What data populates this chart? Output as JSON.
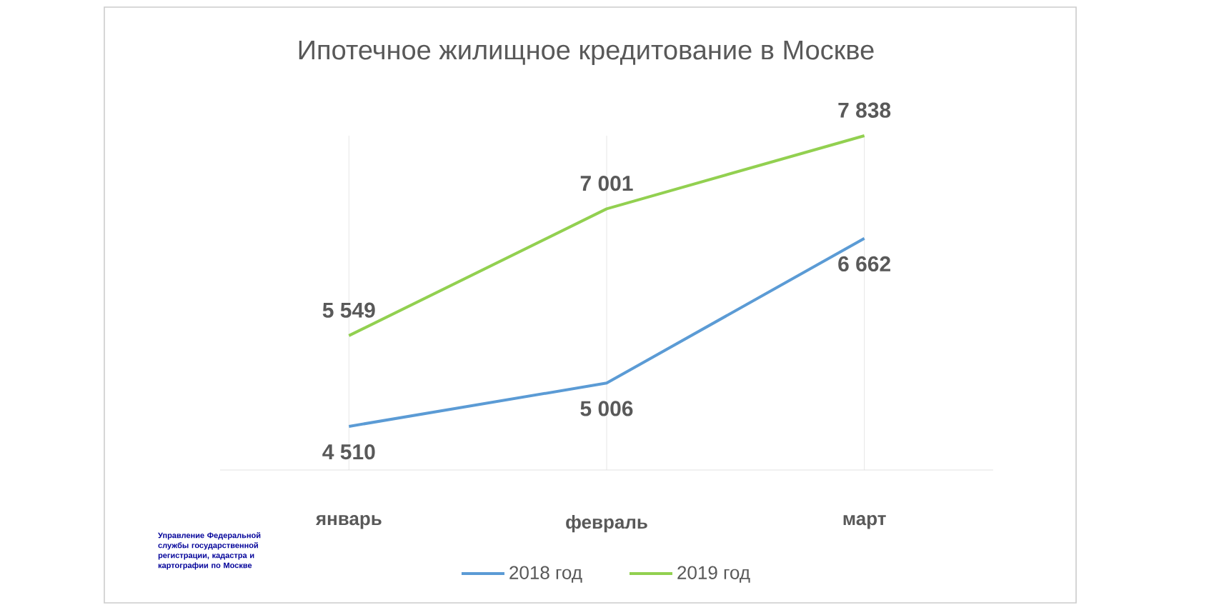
{
  "chart_data": {
    "type": "line",
    "title": "Ипотечное жилищное кредитование в Москве",
    "categories": [
      "январь",
      "февраль",
      "март"
    ],
    "series": [
      {
        "name": "2018 год",
        "color": "#5b9bd5",
        "values": [
          4510,
          5006,
          6662
        ],
        "value_labels": [
          "4 510",
          "5 006",
          "6 662"
        ]
      },
      {
        "name": "2019 год",
        "color": "#92d050",
        "values": [
          5549,
          7001,
          7838
        ],
        "value_labels": [
          "5 549",
          "7 001",
          "7 838"
        ]
      }
    ],
    "grid": "x",
    "legend": "bottom",
    "marker": "none",
    "line_style": "solid",
    "annotations": [
      "Управление Федеральной службы государственной регистрации, кадастра и картографии по Москве"
    ]
  }
}
